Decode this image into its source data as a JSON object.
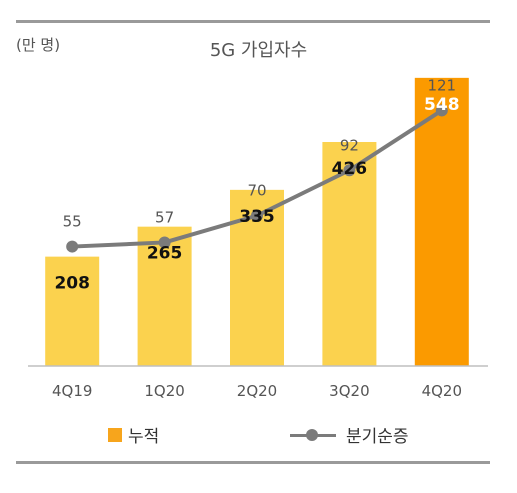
{
  "chart_data": {
    "type": "bar+line",
    "title": "5G 가입자수",
    "unit_label": "(만 명)",
    "categories": [
      "4Q19",
      "1Q20",
      "2Q20",
      "3Q20",
      "4Q20"
    ],
    "series": [
      {
        "name": "누적",
        "type": "bar",
        "values": [
          208,
          265,
          335,
          426,
          548
        ]
      },
      {
        "name": "분기순증",
        "type": "line",
        "values": [
          55,
          57,
          70,
          92,
          121
        ]
      }
    ],
    "bar_ylim": [
      0,
      620
    ],
    "line_ylim": [
      0,
      160
    ],
    "grid": false,
    "legend_position": "bottom"
  },
  "colors": {
    "bar": "#fbd24e",
    "bar_highlight": "#fb9a00",
    "line": "#7b7b7b",
    "text": "#555555"
  }
}
